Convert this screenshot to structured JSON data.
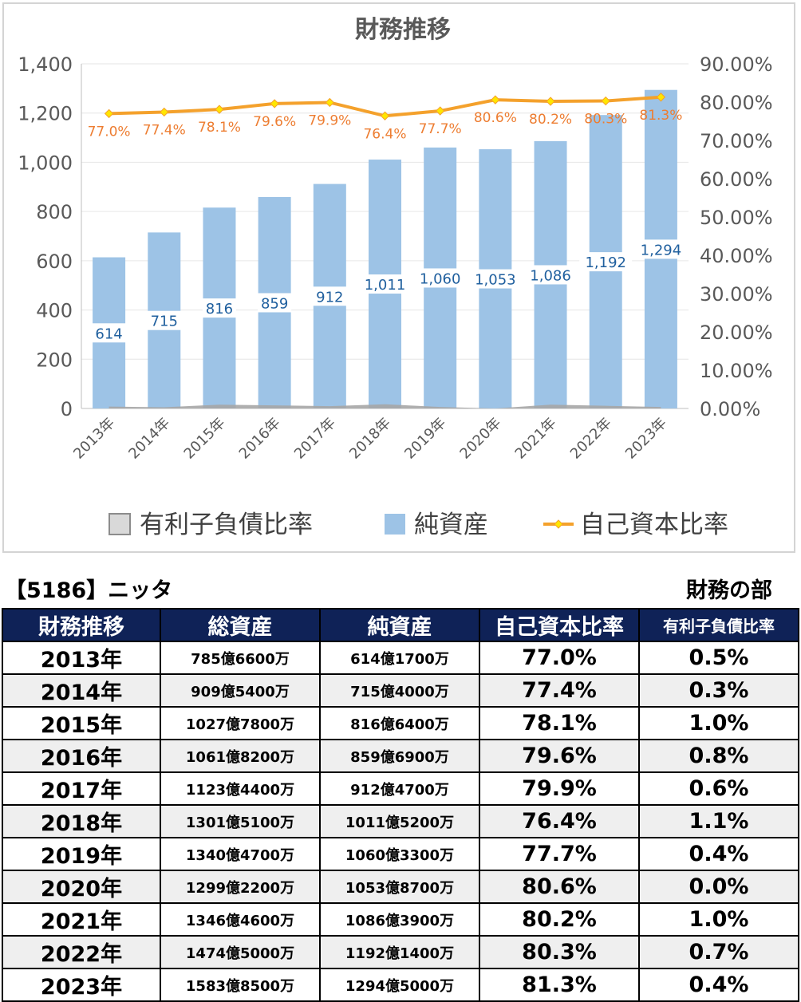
{
  "chart_data": {
    "type": "bar+line",
    "title": "財務推移",
    "categories": [
      "2013年",
      "2014年",
      "2015年",
      "2016年",
      "2017年",
      "2018年",
      "2019年",
      "2020年",
      "2021年",
      "2022年",
      "2023年"
    ],
    "series": [
      {
        "name": "有利子負債比率",
        "type": "area",
        "axis": "right",
        "values": [
          0.5,
          0.3,
          1.0,
          0.8,
          0.6,
          1.1,
          0.4,
          0.0,
          1.0,
          0.7,
          0.4
        ],
        "color": "#a6a6a6"
      },
      {
        "name": "純資産",
        "type": "bar",
        "axis": "left",
        "values": [
          614,
          715,
          816,
          859,
          912,
          1011,
          1060,
          1053,
          1086,
          1192,
          1294
        ],
        "labels": [
          "614",
          "715",
          "816",
          "859",
          "912",
          "1,011",
          "1,060",
          "1,053",
          "1,086",
          "1,192",
          "1,294"
        ],
        "color": "#9dc3e6"
      },
      {
        "name": "自己資本比率",
        "type": "line",
        "axis": "right",
        "values": [
          77.0,
          77.4,
          78.1,
          79.6,
          79.9,
          76.4,
          77.7,
          80.6,
          80.2,
          80.3,
          81.3
        ],
        "labels": [
          "77.0%",
          "77.4%",
          "78.1%",
          "79.6%",
          "79.9%",
          "76.4%",
          "77.7%",
          "80.6%",
          "80.2%",
          "80.3%",
          "81.3%"
        ],
        "color": "#f4a12c"
      }
    ],
    "ylim": [
      0,
      1400
    ],
    "y_ticks": [
      "0",
      "200",
      "400",
      "600",
      "800",
      "1,000",
      "1,200",
      "1,400"
    ],
    "y2lim": [
      0,
      90
    ],
    "y2_ticks": [
      "0.00%",
      "10.00%",
      "20.00%",
      "30.00%",
      "40.00%",
      "50.00%",
      "60.00%",
      "70.00%",
      "80.00%",
      "90.00%"
    ],
    "grid": true,
    "legend": "bottom"
  },
  "company": "【5186】ニッタ",
  "section": "財務の部",
  "table": {
    "headers": [
      "財務推移",
      "総資産",
      "純資産",
      "自己資本比率",
      "有利子負債比率"
    ],
    "rows": [
      [
        "2013年",
        "785億6600万",
        "614億1700万",
        "77.0%",
        "0.5%"
      ],
      [
        "2014年",
        "909億5400万",
        "715億4000万",
        "77.4%",
        "0.3%"
      ],
      [
        "2015年",
        "1027億7800万",
        "816億6400万",
        "78.1%",
        "1.0%"
      ],
      [
        "2016年",
        "1061億8200万",
        "859億6900万",
        "79.6%",
        "0.8%"
      ],
      [
        "2017年",
        "1123億4400万",
        "912億4700万",
        "79.9%",
        "0.6%"
      ],
      [
        "2018年",
        "1301億5100万",
        "1011億5200万",
        "76.4%",
        "1.1%"
      ],
      [
        "2019年",
        "1340億4700万",
        "1060億3300万",
        "77.7%",
        "0.4%"
      ],
      [
        "2020年",
        "1299億2200万",
        "1053億8700万",
        "80.6%",
        "0.0%"
      ],
      [
        "2021年",
        "1346億4600万",
        "1086億3900万",
        "80.2%",
        "1.0%"
      ],
      [
        "2022年",
        "1474億5000万",
        "1192億1400万",
        "80.3%",
        "0.7%"
      ],
      [
        "2023年",
        "1583億8500万",
        "1294億5000万",
        "81.3%",
        "0.4%"
      ]
    ]
  }
}
